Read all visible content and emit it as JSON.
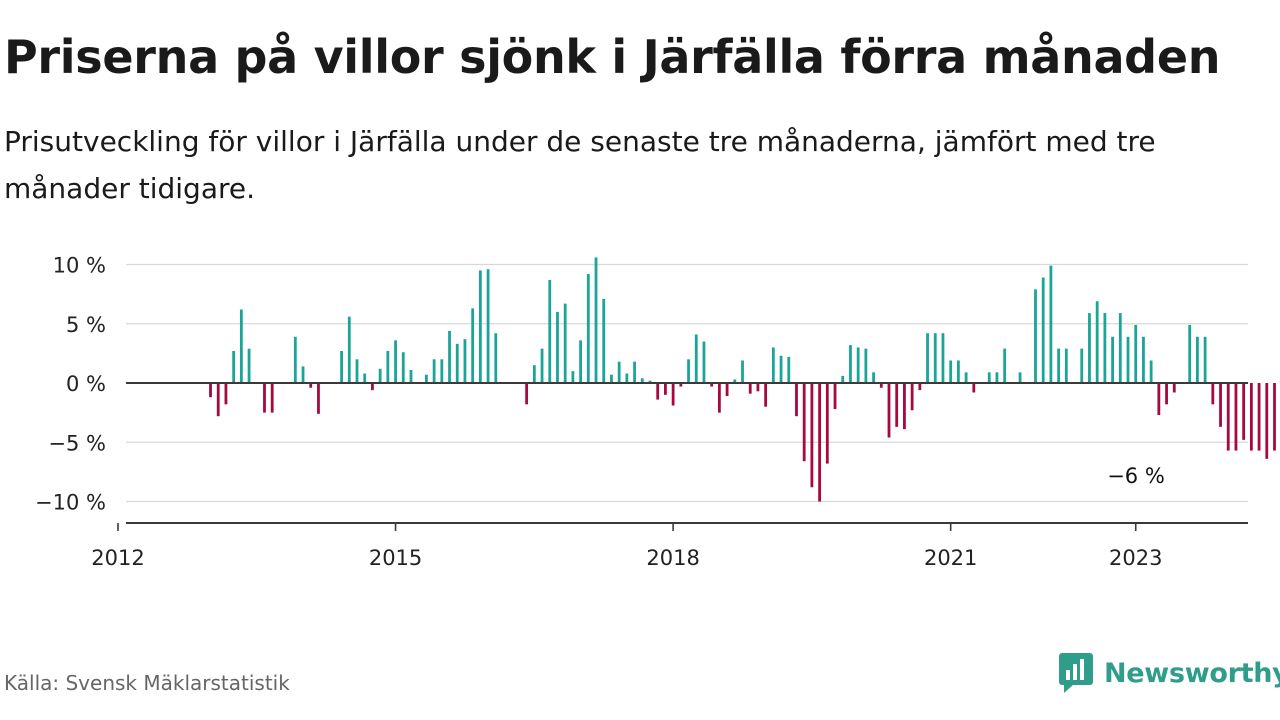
{
  "header": {
    "title": "Priserna på villor sjönk i Järfälla förra månaden",
    "subtitle": "Prisutveckling för villor i Järfälla under de senaste tre månaderna, jämfört med tre månader tidigare."
  },
  "footer": {
    "source": "Källa: Svensk Mäklarstatistik",
    "brand": "Newsworthy"
  },
  "colors": {
    "positive": "#1aa597",
    "negative": "#a6083f",
    "brand": "#2f9d8a"
  },
  "chart_data": {
    "type": "bar",
    "title": "",
    "xlabel": "",
    "ylabel": "",
    "ylim": [
      -11.5,
      11
    ],
    "yticks": [
      10,
      5,
      0,
      -5,
      -10
    ],
    "ytick_labels": [
      "10 %",
      "5 %",
      "0 %",
      "−5 %",
      "−10 %"
    ],
    "x_start": "2012-01",
    "xticks": [
      "2012",
      "2015",
      "2018",
      "2021",
      "2023"
    ],
    "grid": true,
    "legend": "none",
    "annotation": {
      "text": "−6 %",
      "month": "2022-12"
    },
    "values": [
      null,
      null,
      null,
      null,
      null,
      null,
      null,
      null,
      null,
      null,
      null,
      null,
      -1.2,
      -2.8,
      -1.8,
      2.7,
      6.2,
      2.9,
      null,
      -2.5,
      -2.5,
      null,
      null,
      3.9,
      1.4,
      -0.4,
      -2.6,
      null,
      null,
      2.7,
      5.6,
      2,
      0.8,
      -0.6,
      1.2,
      2.7,
      3.6,
      2.6,
      1.1,
      null,
      0.7,
      2,
      2,
      4.4,
      3.3,
      3.7,
      6.3,
      9.5,
      9.6,
      4.2,
      null,
      null,
      null,
      -1.8,
      1.5,
      2.9,
      8.7,
      6,
      6.7,
      1,
      3.6,
      9.2,
      10.6,
      7.1,
      0.7,
      1.8,
      0.8,
      1.8,
      0.4,
      0.2,
      -1.4,
      -1,
      -1.9,
      -0.3,
      2,
      4.1,
      3.5,
      -0.3,
      -2.5,
      -1.1,
      0.3,
      1.9,
      -0.9,
      -0.7,
      -2,
      3,
      2.3,
      2.2,
      -2.8,
      -6.6,
      -8.8,
      -10,
      -6.8,
      -2.2,
      0.6,
      3.2,
      3,
      2.9,
      0.9,
      -0.4,
      -4.6,
      -3.7,
      -3.9,
      -2.3,
      -0.6,
      4.2,
      4.2,
      4.2,
      1.9,
      1.9,
      0.9,
      -0.8,
      null,
      0.9,
      0.9,
      2.9,
      null,
      0.9,
      null,
      7.9,
      8.9,
      9.9,
      2.9,
      2.9,
      null,
      2.9,
      5.9,
      6.9,
      5.9,
      3.9,
      5.9,
      3.9,
      4.9,
      3.9,
      1.9,
      -2.7,
      -1.8,
      -0.8,
      null,
      4.9,
      3.9,
      3.9,
      -1.8,
      -3.7,
      -5.7,
      -5.7,
      -4.8,
      -5.7,
      -5.7,
      -6.4,
      -5.7,
      null,
      null,
      null,
      null,
      null,
      null,
      null
    ]
  }
}
